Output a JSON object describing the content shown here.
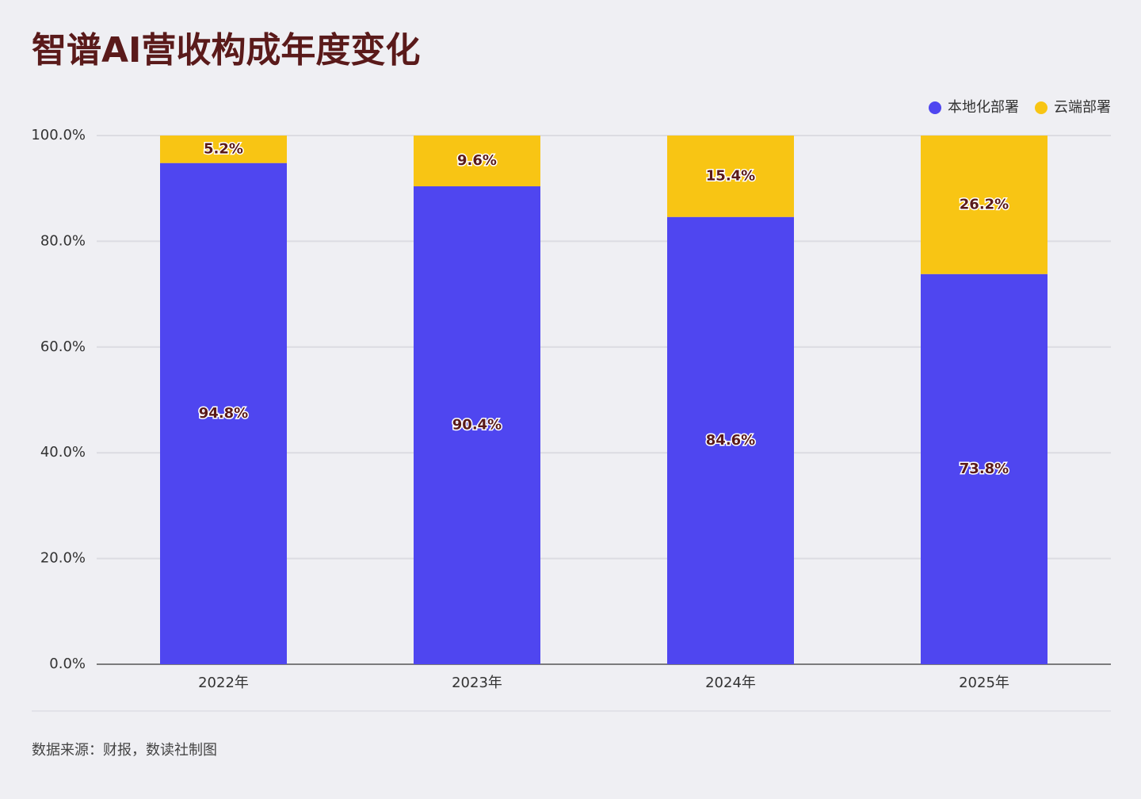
{
  "chart_data": {
    "type": "stacked_bar",
    "title": "智谱AI营收构成年度变化",
    "categories": [
      "2022年",
      "2023年",
      "2024年",
      "2025年"
    ],
    "series": [
      {
        "name": "本地化部署",
        "color": "#4f46f0",
        "values": [
          94.8,
          90.4,
          84.6,
          73.8
        ],
        "value_labels": [
          "94.8%",
          "90.4%",
          "84.6%",
          "73.8%"
        ]
      },
      {
        "name": "云端部署",
        "color": "#f8c514",
        "values": [
          5.2,
          9.6,
          15.4,
          26.2
        ],
        "value_labels": [
          "5.2%",
          "9.6%",
          "15.4%",
          "26.2%"
        ]
      }
    ],
    "ylim": [
      0,
      100
    ],
    "yticks": [
      {
        "value": 0,
        "label": "0.0%"
      },
      {
        "value": 20,
        "label": "20.0%"
      },
      {
        "value": 40,
        "label": "40.0%"
      },
      {
        "value": 60,
        "label": "60.0%"
      },
      {
        "value": 80,
        "label": "80.0%"
      },
      {
        "value": 100,
        "label": "100.0%"
      }
    ],
    "grid": true,
    "legend": "top-right",
    "source": "数据来源：财报，数读社制图"
  }
}
